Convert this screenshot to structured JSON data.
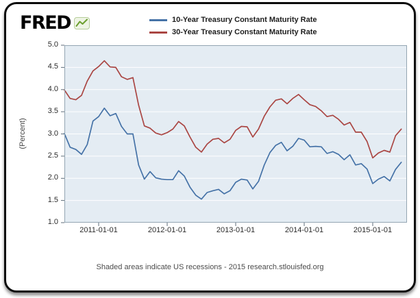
{
  "logo": {
    "text": "FRED",
    "icon": "fred-sparkline-icon"
  },
  "footer": {
    "note": "Shaded areas indicate US recessions - 2015 research.stlouisfed.org"
  },
  "chart_data": {
    "type": "line",
    "title": "",
    "xlabel": "",
    "ylabel": "(Percent)",
    "ylim": [
      1.0,
      5.0
    ],
    "yticks": [
      1.0,
      1.5,
      2.0,
      2.5,
      3.0,
      3.5,
      4.0,
      4.5,
      5.0
    ],
    "xlim_decimal_years": [
      2010.5,
      2015.5
    ],
    "xticks": [
      "2011-01-01",
      "2012-01-01",
      "2013-01-01",
      "2014-01-01",
      "2015-01-01"
    ],
    "grid": "horizontal",
    "legend_position": "top-center",
    "plot_bg_color": "#e4ecf3",
    "grid_color": "#ffffff",
    "x": [
      "2010-07",
      "2010-08",
      "2010-09",
      "2010-10",
      "2010-11",
      "2010-12",
      "2011-01",
      "2011-02",
      "2011-03",
      "2011-04",
      "2011-05",
      "2011-06",
      "2011-07",
      "2011-08",
      "2011-09",
      "2011-10",
      "2011-11",
      "2011-12",
      "2012-01",
      "2012-02",
      "2012-03",
      "2012-04",
      "2012-05",
      "2012-06",
      "2012-07",
      "2012-08",
      "2012-09",
      "2012-10",
      "2012-11",
      "2012-12",
      "2013-01",
      "2013-02",
      "2013-03",
      "2013-04",
      "2013-05",
      "2013-06",
      "2013-07",
      "2013-08",
      "2013-09",
      "2013-10",
      "2013-11",
      "2013-12",
      "2014-01",
      "2014-02",
      "2014-03",
      "2014-04",
      "2014-05",
      "2014-06",
      "2014-07",
      "2014-08",
      "2014-09",
      "2014-10",
      "2014-11",
      "2014-12",
      "2015-01",
      "2015-02",
      "2015-03",
      "2015-04",
      "2015-05",
      "2015-06"
    ],
    "series": [
      {
        "name": "10-Year Treasury Constant Maturity Rate",
        "color": "#4572a7",
        "values": [
          3.01,
          2.7,
          2.65,
          2.54,
          2.76,
          3.29,
          3.39,
          3.58,
          3.41,
          3.46,
          3.17,
          3.0,
          3.0,
          2.3,
          1.98,
          2.15,
          2.01,
          1.98,
          1.97,
          1.97,
          2.17,
          2.05,
          1.8,
          1.62,
          1.53,
          1.68,
          1.72,
          1.75,
          1.65,
          1.72,
          1.91,
          1.98,
          1.96,
          1.76,
          1.93,
          2.3,
          2.58,
          2.74,
          2.81,
          2.62,
          2.72,
          2.9,
          2.86,
          2.71,
          2.72,
          2.71,
          2.56,
          2.6,
          2.54,
          2.42,
          2.53,
          2.3,
          2.33,
          2.21,
          1.88,
          1.98,
          2.04,
          1.94,
          2.2,
          2.36
        ]
      },
      {
        "name": "30-Year Treasury Constant Maturity Rate",
        "color": "#aa4643",
        "values": [
          3.99,
          3.8,
          3.77,
          3.87,
          4.19,
          4.42,
          4.52,
          4.65,
          4.51,
          4.5,
          4.29,
          4.23,
          4.27,
          3.65,
          3.18,
          3.13,
          3.02,
          2.98,
          3.03,
          3.11,
          3.28,
          3.18,
          2.93,
          2.7,
          2.59,
          2.77,
          2.88,
          2.9,
          2.8,
          2.88,
          3.08,
          3.17,
          3.16,
          2.93,
          3.11,
          3.4,
          3.61,
          3.76,
          3.79,
          3.68,
          3.8,
          3.89,
          3.77,
          3.66,
          3.62,
          3.52,
          3.39,
          3.42,
          3.33,
          3.2,
          3.26,
          3.04,
          3.04,
          2.83,
          2.46,
          2.57,
          2.63,
          2.59,
          2.96,
          3.11
        ]
      }
    ]
  }
}
